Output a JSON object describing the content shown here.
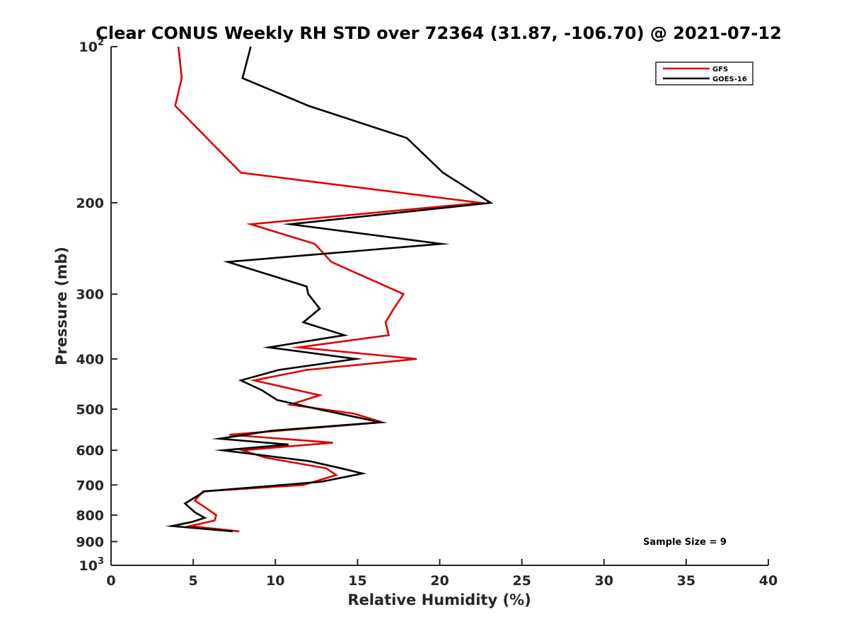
{
  "chart_data": {
    "type": "line",
    "title": "Clear CONUS Weekly RH STD over 72364 (31.87, -106.70) @ 2021-07-12",
    "xlabel": "Relative Humidity (%)",
    "ylabel": "Pressure (mb)",
    "xlim": [
      0,
      40
    ],
    "ylim": [
      100,
      1000
    ],
    "y_scale": "log",
    "y_reversed": true,
    "x_ticks": [
      "0",
      "5",
      "10",
      "15",
      "20",
      "25",
      "30",
      "35",
      "40"
    ],
    "y_ticks": [
      {
        "value": 100,
        "base": "10",
        "exp": "2"
      },
      {
        "value": 200,
        "base": "200",
        "exp": ""
      },
      {
        "value": 300,
        "base": "300",
        "exp": ""
      },
      {
        "value": 400,
        "base": "400",
        "exp": ""
      },
      {
        "value": 500,
        "base": "500",
        "exp": ""
      },
      {
        "value": 600,
        "base": "600",
        "exp": ""
      },
      {
        "value": 700,
        "base": "700",
        "exp": ""
      },
      {
        "value": 800,
        "base": "800",
        "exp": ""
      },
      {
        "value": 900,
        "base": "900",
        "exp": ""
      },
      {
        "value": 1000,
        "base": "10",
        "exp": "3"
      }
    ],
    "grid": false,
    "legend_position": "top-right",
    "series": [
      {
        "name": "GFS",
        "color": "#e00000",
        "points": [
          [
            4.1,
            100
          ],
          [
            4.3,
            115
          ],
          [
            3.9,
            130
          ],
          [
            7.9,
            175
          ],
          [
            22.5,
            200
          ],
          [
            8.5,
            220
          ],
          [
            12.4,
            240
          ],
          [
            13.4,
            260
          ],
          [
            17.8,
            300
          ],
          [
            17.2,
            320
          ],
          [
            16.7,
            340
          ],
          [
            16.9,
            360
          ],
          [
            11.4,
            380
          ],
          [
            18.6,
            400
          ],
          [
            11.9,
            420
          ],
          [
            8.7,
            440
          ],
          [
            12.7,
            470
          ],
          [
            10.9,
            490
          ],
          [
            14.8,
            510
          ],
          [
            16.5,
            530
          ],
          [
            7.2,
            560
          ],
          [
            13.5,
            580
          ],
          [
            8.0,
            600
          ],
          [
            9.4,
            620
          ],
          [
            13.1,
            650
          ],
          [
            13.7,
            670
          ],
          [
            11.7,
            700
          ],
          [
            5.6,
            720
          ],
          [
            5.1,
            750
          ],
          [
            5.9,
            780
          ],
          [
            6.4,
            800
          ],
          [
            6.3,
            820
          ],
          [
            4.8,
            840
          ],
          [
            7.8,
            860
          ]
        ]
      },
      {
        "name": "GOES-16",
        "color": "#000000",
        "points": [
          [
            8.5,
            100
          ],
          [
            8.0,
            115
          ],
          [
            12.0,
            130
          ],
          [
            18.0,
            150
          ],
          [
            20.2,
            175
          ],
          [
            23.1,
            200
          ],
          [
            10.9,
            220
          ],
          [
            20.1,
            240
          ],
          [
            7.1,
            260
          ],
          [
            11.9,
            290
          ],
          [
            12.0,
            300
          ],
          [
            12.7,
            320
          ],
          [
            11.7,
            340
          ],
          [
            14.2,
            360
          ],
          [
            9.6,
            380
          ],
          [
            14.9,
            400
          ],
          [
            10.2,
            420
          ],
          [
            7.9,
            440
          ],
          [
            9.2,
            460
          ],
          [
            10.1,
            480
          ],
          [
            12.6,
            500
          ],
          [
            16.4,
            530
          ],
          [
            9.8,
            550
          ],
          [
            6.6,
            570
          ],
          [
            10.8,
            585
          ],
          [
            6.8,
            600
          ],
          [
            12.1,
            630
          ],
          [
            14.0,
            650
          ],
          [
            15.3,
            665
          ],
          [
            12.8,
            690
          ],
          [
            5.7,
            720
          ],
          [
            4.5,
            760
          ],
          [
            5.1,
            790
          ],
          [
            5.7,
            810
          ],
          [
            4.9,
            825
          ],
          [
            3.7,
            840
          ],
          [
            7.4,
            860
          ]
        ]
      }
    ],
    "annotation": "Sample Size = 9"
  }
}
